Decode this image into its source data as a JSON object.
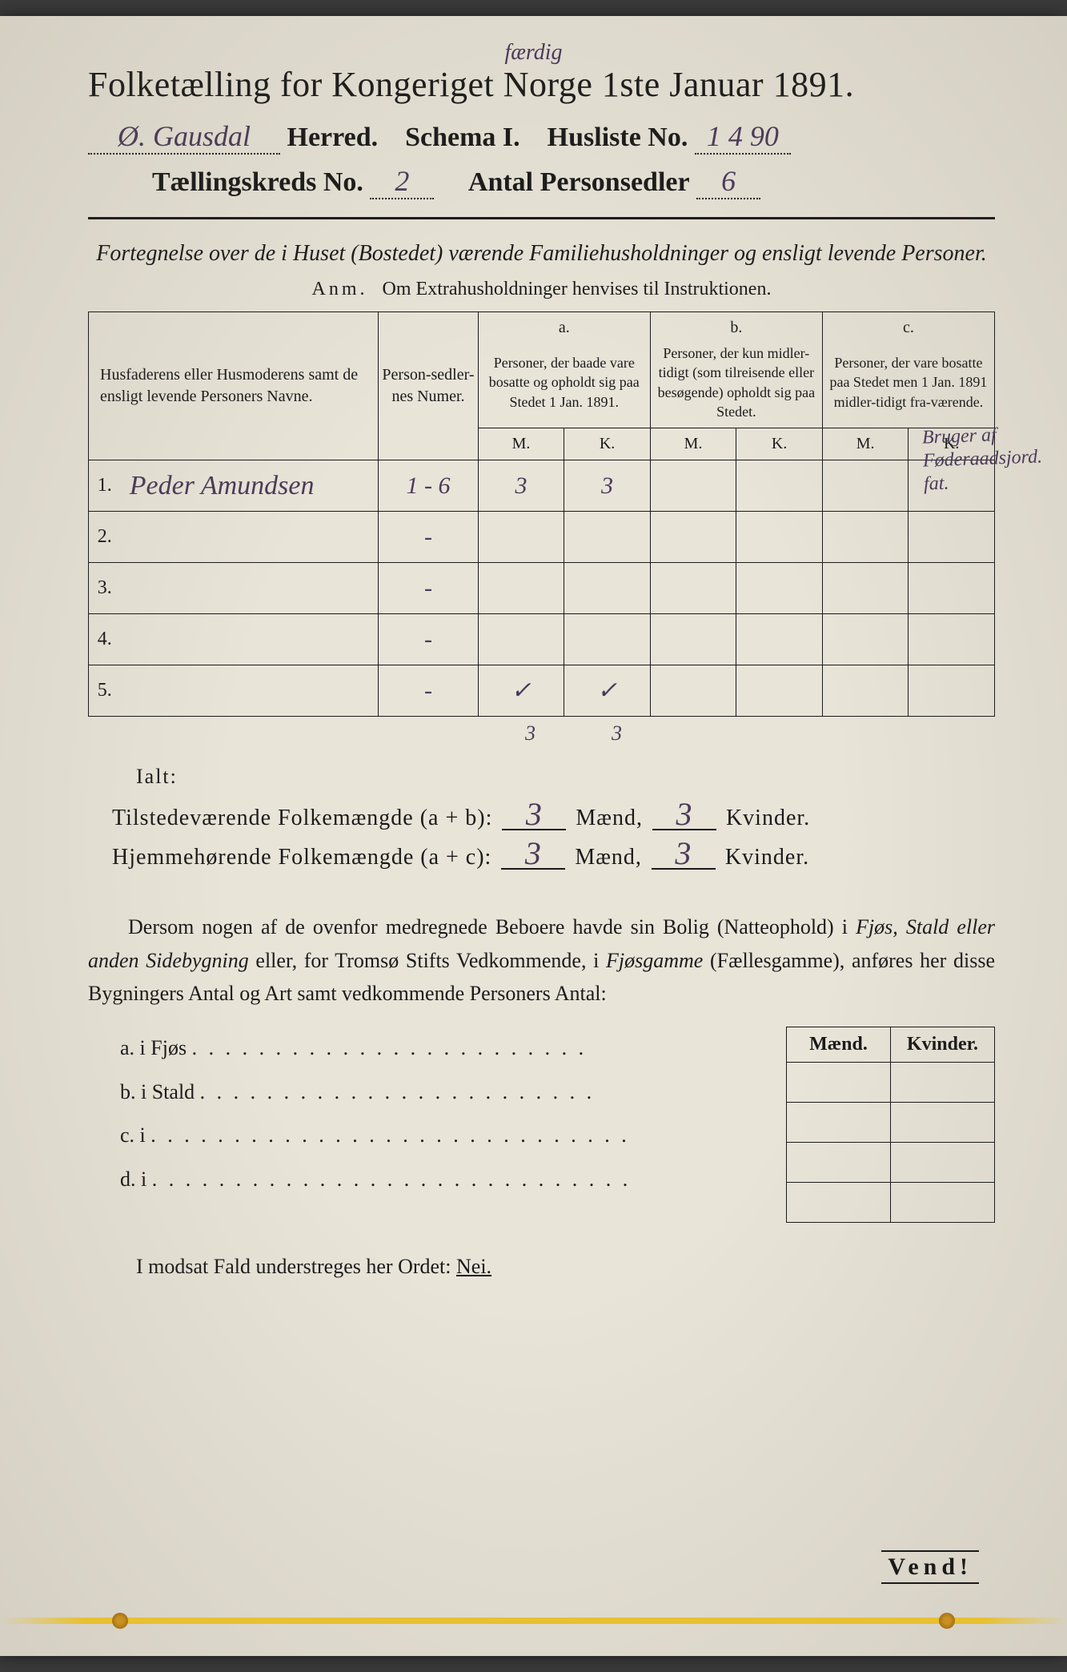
{
  "top_handwritten": "færdig",
  "title": "Folketælling for Kongeriget Norge 1ste Januar 1891.",
  "header": {
    "herred_value": "Ø. Gausdal",
    "herred_label": "Herred.",
    "schema_label": "Schema I.",
    "husliste_label": "Husliste No.",
    "husliste_value": "1 4 90",
    "kreds_label": "Tællingskreds No.",
    "kreds_value": "2",
    "antal_label": "Antal Personsedler",
    "antal_value": "6"
  },
  "subtitle": "Fortegnelse over de i Huset (Bostedet) værende Familiehusholdninger og ensligt levende Personer.",
  "anm_label": "Anm.",
  "anm_text": "Om Extrahusholdninger henvises til Instruktionen.",
  "table": {
    "col_name": "Husfaderens eller Husmoderens samt de ensligt levende Personers Navne.",
    "col_num": "Person-sedler-nes Numer.",
    "col_a_head": "a.",
    "col_a_desc": "Personer, der baade vare bosatte og opholdt sig paa Stedet 1 Jan. 1891.",
    "col_b_head": "b.",
    "col_b_desc": "Personer, der kun midler-tidigt (som tilreisende eller besøgende) opholdt sig paa Stedet.",
    "col_c_head": "c.",
    "col_c_desc": "Personer, der vare bosatte paa Stedet men 1 Jan. 1891 midler-tidigt fra-værende.",
    "mk_m": "M.",
    "mk_k": "K.",
    "rows": [
      {
        "n": "1.",
        "name": "Peder Amundsen",
        "num": "1 - 6",
        "a_m": "3",
        "a_k": "3",
        "b_m": "",
        "b_k": "",
        "c_m": "",
        "c_k": ""
      },
      {
        "n": "2.",
        "name": "",
        "num": "-",
        "a_m": "",
        "a_k": "",
        "b_m": "",
        "b_k": "",
        "c_m": "",
        "c_k": ""
      },
      {
        "n": "3.",
        "name": "",
        "num": "-",
        "a_m": "",
        "a_k": "",
        "b_m": "",
        "b_k": "",
        "c_m": "",
        "c_k": ""
      },
      {
        "n": "4.",
        "name": "",
        "num": "-",
        "a_m": "",
        "a_k": "",
        "b_m": "",
        "b_k": "",
        "c_m": "",
        "c_k": ""
      },
      {
        "n": "5.",
        "name": "",
        "num": "-",
        "a_m": "✓",
        "a_k": "✓",
        "b_m": "",
        "b_k": "",
        "c_m": "",
        "c_k": ""
      }
    ],
    "below_a_m": "3",
    "below_a_k": "3"
  },
  "side_note": "Bruger af Føderaadsjord. fat.",
  "ialt": "Ialt:",
  "sum1_label_a": "Tilstedeværende Folkemængde (a + b):",
  "sum1_m": "3",
  "sum1_k": "3",
  "sum2_label_a": "Hjemmehørende Folkemængde (a + c):",
  "sum2_m": "3",
  "sum2_k": "3",
  "maend": "Mænd,",
  "kvinder": "Kvinder.",
  "para": "Dersom nogen af de ovenfor medregnede Beboere havde sin Bolig (Natteophold) i Fjøs, Stald eller anden Sidebygning eller, for Tromsø Stifts Vedkommende, i Fjøsgamme (Fællesgamme), anføres her disse Bygningers Antal og Art samt vedkommende Personers Antal:",
  "byg": {
    "a": "a.  i      Fjøs",
    "b": "b.  i      Stald",
    "c": "c.  i",
    "d": "d.  i"
  },
  "mk_head_m": "Mænd.",
  "mk_head_k": "Kvinder.",
  "nei_line": "I modsat Fald understreges her Ordet: ",
  "nei": "Nei.",
  "vend": "Vend!",
  "colors": {
    "paper": "#e8e4d8",
    "ink": "#1a1a1a",
    "handwriting": "#4a3a5a",
    "string": "#e8c030"
  }
}
